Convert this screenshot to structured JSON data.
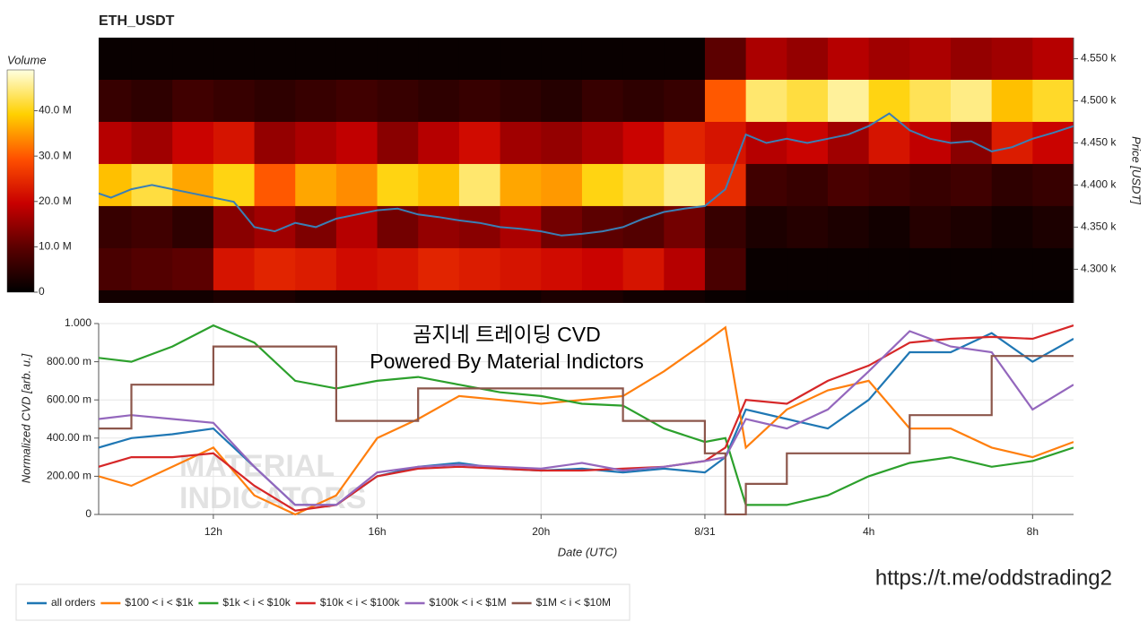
{
  "chart_data": [
    {
      "type": "heatmap",
      "title": "ETH_USDT",
      "xlim": [
        9.2,
        33
      ],
      "x_edges": [
        9,
        10,
        11,
        12,
        13,
        14,
        15,
        16,
        17,
        18,
        19,
        20,
        21,
        22,
        23,
        24,
        25,
        26,
        27,
        28,
        29,
        30,
        31,
        32,
        33
      ],
      "row_prices": [
        4550,
        4500,
        4450,
        4400,
        4350,
        4300,
        4250
      ],
      "values": [
        [
          1,
          1,
          1,
          1,
          1,
          1,
          1,
          1,
          1,
          1,
          1,
          1,
          1,
          1,
          1,
          10,
          17,
          15,
          18,
          16,
          17,
          15,
          16,
          18
        ],
        [
          6,
          5,
          7,
          6,
          5,
          6,
          7,
          6,
          5,
          6,
          5,
          4,
          6,
          5,
          6,
          30,
          44,
          42,
          46,
          40,
          43,
          45,
          38,
          41
        ],
        [
          18,
          16,
          20,
          22,
          15,
          17,
          19,
          14,
          18,
          21,
          16,
          15,
          17,
          20,
          24,
          22,
          18,
          20,
          16,
          22,
          19,
          14,
          23,
          20
        ],
        [
          38,
          42,
          36,
          40,
          30,
          36,
          34,
          40,
          38,
          44,
          36,
          35,
          40,
          42,
          45,
          25,
          7,
          6,
          8,
          7,
          6,
          7,
          5,
          6
        ],
        [
          6,
          7,
          5,
          14,
          16,
          13,
          18,
          12,
          15,
          14,
          17,
          12,
          10,
          9,
          12,
          6,
          3,
          4,
          3,
          2,
          4,
          3,
          2,
          3
        ],
        [
          8,
          9,
          10,
          22,
          24,
          23,
          21,
          22,
          24,
          23,
          22,
          21,
          20,
          22,
          18,
          8,
          1,
          1,
          1,
          1,
          1,
          1,
          1,
          1
        ],
        [
          2,
          2,
          2,
          3,
          3,
          2,
          2,
          2,
          2,
          2,
          2,
          3,
          3,
          2,
          2,
          1,
          0.5,
          0.5,
          0.5,
          0.5,
          0.5,
          0.5,
          0.5,
          0.5
        ]
      ],
      "colorbar": {
        "label": "Volume",
        "clim": [
          0,
          49
        ],
        "colors": [
          "#000000",
          "#5a0000",
          "#c80000",
          "#ff5000",
          "#ffd000",
          "#ffffe0"
        ],
        "ticks": [
          0,
          {
            "value": 10,
            "label": "10.0 M"
          },
          {
            "value": 20,
            "label": "20.0 M"
          },
          {
            "value": 30,
            "label": "30.0 M"
          },
          {
            "value": 40,
            "label": "40.0 M"
          }
        ]
      },
      "ylabel": "Price [USDT]",
      "ylim": [
        4260,
        4575
      ],
      "yticks": [
        {
          "value": 4300,
          "label": "4.300 k"
        },
        {
          "value": 4350,
          "label": "4.350 k"
        },
        {
          "value": 4400,
          "label": "4.400 k"
        },
        {
          "value": 4450,
          "label": "4.450 k"
        },
        {
          "value": 4500,
          "label": "4.500 k"
        },
        {
          "value": 4550,
          "label": "4.550 k"
        }
      ],
      "price_line": {
        "color": "#3a7fb5",
        "x": [
          9.2,
          9.5,
          10,
          10.5,
          11,
          11.5,
          12,
          12.5,
          13,
          13.5,
          14,
          14.5,
          15,
          15.5,
          16,
          16.5,
          17,
          17.5,
          18,
          18.5,
          19,
          19.5,
          20,
          20.5,
          21,
          21.5,
          22,
          22.5,
          23,
          23.5,
          24,
          24.5,
          25,
          25.5,
          26,
          26.5,
          27,
          27.5,
          28,
          28.5,
          29,
          29.5,
          30,
          30.5,
          31,
          31.5,
          32,
          32.5,
          33
        ],
        "values": [
          4390,
          4385,
          4395,
          4400,
          4395,
          4390,
          4385,
          4380,
          4350,
          4345,
          4355,
          4350,
          4360,
          4365,
          4370,
          4372,
          4365,
          4362,
          4358,
          4355,
          4350,
          4348,
          4345,
          4340,
          4342,
          4345,
          4350,
          4360,
          4368,
          4372,
          4375,
          4395,
          4460,
          4450,
          4455,
          4450,
          4455,
          4460,
          4470,
          4485,
          4465,
          4455,
          4450,
          4452,
          4440,
          4445,
          4455,
          4462,
          4470
        ]
      }
    },
    {
      "type": "line",
      "annotations": [
        "곰지네 트레이딩 CVD",
        "Powered By Material Indictors"
      ],
      "watermark": [
        "MATERIAL",
        "INDICATORS"
      ],
      "xlabel": "Date (UTC)",
      "ylabel": "Normalized CVD [arb. u.]",
      "xlim": [
        9.2,
        33
      ],
      "xticks": [
        {
          "value": 12,
          "label": "12h"
        },
        {
          "value": 16,
          "label": "16h"
        },
        {
          "value": 20,
          "label": "20h"
        },
        {
          "value": 24,
          "label": "8/31"
        },
        {
          "value": 28,
          "label": "4h"
        },
        {
          "value": 32,
          "label": "8h"
        }
      ],
      "ylim": [
        0,
        1
      ],
      "yticks": [
        0,
        {
          "value": 0.2,
          "label": "200.00 m"
        },
        {
          "value": 0.4,
          "label": "400.00 m"
        },
        {
          "value": 0.6,
          "label": "600.00 m"
        },
        {
          "value": 0.8,
          "label": "800.00 m"
        },
        {
          "value": 1,
          "label": "1.000"
        }
      ],
      "grid": true,
      "x": [
        9.2,
        10,
        11,
        12,
        13,
        14,
        15,
        16,
        17,
        18,
        19,
        20,
        21,
        22,
        23,
        24,
        24.5,
        25,
        26,
        27,
        28,
        29,
        30,
        31,
        32,
        33
      ],
      "series": [
        {
          "name": "all orders",
          "color": "#1f77b4",
          "values": [
            0.35,
            0.4,
            0.42,
            0.45,
            0.25,
            0.05,
            0.05,
            0.2,
            0.25,
            0.27,
            0.24,
            0.23,
            0.24,
            0.22,
            0.24,
            0.22,
            0.3,
            0.55,
            0.5,
            0.45,
            0.6,
            0.85,
            0.85,
            0.95,
            0.8,
            0.92
          ]
        },
        {
          "name": "$100 < i < $1k",
          "color": "#ff7f0e",
          "values": [
            0.2,
            0.15,
            0.25,
            0.35,
            0.1,
            0.0,
            0.1,
            0.4,
            0.5,
            0.62,
            0.6,
            0.58,
            0.6,
            0.62,
            0.75,
            0.9,
            0.98,
            0.35,
            0.55,
            0.65,
            0.7,
            0.45,
            0.45,
            0.35,
            0.3,
            0.38
          ]
        },
        {
          "name": "$1k < i < $10k",
          "color": "#2ca02c",
          "values": [
            0.82,
            0.8,
            0.88,
            0.99,
            0.9,
            0.7,
            0.66,
            0.7,
            0.72,
            0.68,
            0.64,
            0.62,
            0.58,
            0.57,
            0.45,
            0.38,
            0.4,
            0.05,
            0.05,
            0.1,
            0.2,
            0.27,
            0.3,
            0.25,
            0.28,
            0.35
          ]
        },
        {
          "name": "$10k < i < $100k",
          "color": "#d62728",
          "values": [
            0.25,
            0.3,
            0.3,
            0.32,
            0.15,
            0.02,
            0.05,
            0.2,
            0.24,
            0.25,
            0.24,
            0.23,
            0.23,
            0.24,
            0.25,
            0.28,
            0.35,
            0.6,
            0.58,
            0.7,
            0.78,
            0.9,
            0.92,
            0.93,
            0.92,
            0.99
          ]
        },
        {
          "name": "$100k < i < $1M",
          "color": "#9467bd",
          "values": [
            0.5,
            0.52,
            0.5,
            0.48,
            0.25,
            0.05,
            0.05,
            0.22,
            0.25,
            0.26,
            0.25,
            0.24,
            0.27,
            0.23,
            0.25,
            0.28,
            0.3,
            0.5,
            0.45,
            0.55,
            0.75,
            0.96,
            0.88,
            0.85,
            0.55,
            0.68
          ]
        },
        {
          "name": "$1M < i < $10M",
          "color": "#8c564b",
          "step": true,
          "values": [
            0.45,
            0.68,
            0.68,
            0.88,
            0.88,
            0.88,
            0.49,
            0.49,
            0.66,
            0.66,
            0.66,
            0.66,
            0.66,
            0.49,
            0.49,
            0.32,
            0.0,
            0.16,
            0.32,
            0.32,
            0.32,
            0.52,
            0.52,
            0.83,
            0.83,
            0.83
          ]
        }
      ]
    }
  ],
  "footer_link": "https://t.me/oddstrading2"
}
